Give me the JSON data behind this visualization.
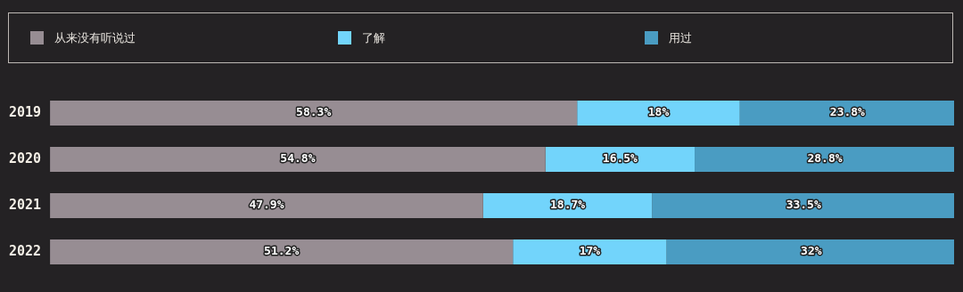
{
  "chart_data": {
    "type": "bar",
    "orientation": "horizontal",
    "stacked": true,
    "categories": [
      "2019",
      "2020",
      "2021",
      "2022"
    ],
    "xlim": [
      0,
      100
    ],
    "tick_labels": "y",
    "legend": "top",
    "series": [
      {
        "name": "从来没有听说过",
        "color": "#978d93",
        "values": [
          58.3,
          54.8,
          47.9,
          51.2
        ],
        "value_labels": [
          "58.3%",
          "54.8%",
          "47.9%",
          "51.2%"
        ]
      },
      {
        "name": "了解",
        "color": "#72d4fb",
        "values": [
          18,
          16.5,
          18.7,
          17
        ],
        "value_labels": [
          "18%",
          "16.5%",
          "18.7%",
          "17%"
        ]
      },
      {
        "name": "用过",
        "color": "#4a9cc2",
        "values": [
          23.8,
          28.8,
          33.5,
          32
        ],
        "value_labels": [
          "23.8%",
          "28.8%",
          "33.5%",
          "32%"
        ]
      }
    ]
  }
}
